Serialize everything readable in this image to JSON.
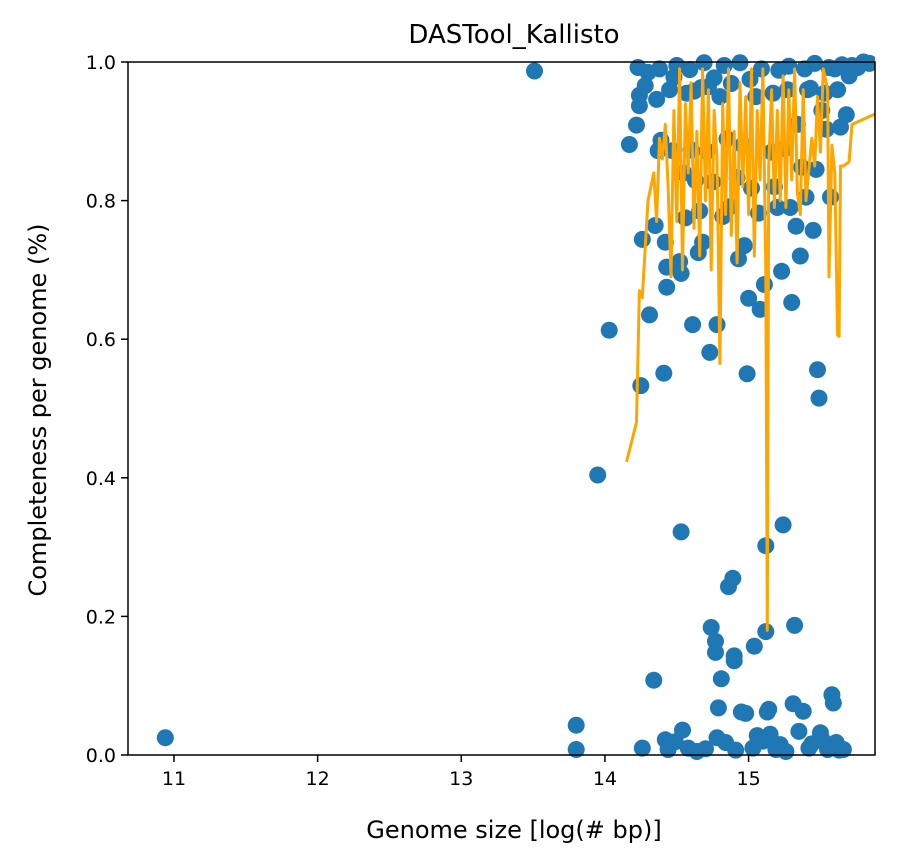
{
  "chart_data": {
    "type": "scatter",
    "title": "DASTool_Kallisto",
    "xlabel": "Genome size [log(# bp)]",
    "ylabel": "Completeness per genome (%)",
    "xlim": [
      10.68,
      15.88
    ],
    "ylim": [
      0.0,
      1.0
    ],
    "xticks": [
      11,
      12,
      13,
      14,
      15
    ],
    "yticks": [
      0.0,
      0.2,
      0.4,
      0.6,
      0.8,
      1.0
    ],
    "xtick_labels": [
      "11",
      "12",
      "13",
      "14",
      "15"
    ],
    "ytick_labels": [
      "0.0",
      "0.2",
      "0.4",
      "0.6",
      "0.8",
      "1.0"
    ],
    "grid": false,
    "series": [
      {
        "kind": "scatter",
        "color": "#1f77b4",
        "points": [
          [
            10.94,
            0.025
          ],
          [
            13.51,
            0.987
          ],
          [
            13.8,
            0.043
          ],
          [
            13.8,
            0.008
          ],
          [
            13.95,
            0.404
          ],
          [
            14.03,
            0.613
          ],
          [
            14.17,
            0.881
          ],
          [
            14.22,
            0.909
          ],
          [
            14.23,
            0.992
          ],
          [
            14.24,
            0.952
          ],
          [
            14.24,
            0.937
          ],
          [
            14.25,
            0.533
          ],
          [
            14.26,
            0.744
          ],
          [
            14.26,
            0.01
          ],
          [
            14.28,
            0.966
          ],
          [
            14.3,
            0.985
          ],
          [
            14.31,
            0.635
          ],
          [
            14.34,
            0.108
          ],
          [
            14.35,
            0.764
          ],
          [
            14.36,
            0.946
          ],
          [
            14.37,
            0.872
          ],
          [
            14.38,
            0.99
          ],
          [
            14.39,
            0.887
          ],
          [
            14.41,
            0.551
          ],
          [
            14.42,
            0.74
          ],
          [
            14.42,
            0.022
          ],
          [
            14.43,
            0.704
          ],
          [
            14.43,
            0.675
          ],
          [
            14.44,
            0.008
          ],
          [
            14.45,
            0.96
          ],
          [
            14.47,
            0.872
          ],
          [
            14.48,
            0.978
          ],
          [
            14.49,
            0.019
          ],
          [
            14.5,
            0.995
          ],
          [
            14.52,
            0.712
          ],
          [
            14.53,
            0.695
          ],
          [
            14.53,
            0.322
          ],
          [
            14.54,
            0.036
          ],
          [
            14.55,
            0.84
          ],
          [
            14.56,
            0.775
          ],
          [
            14.57,
            0.955
          ],
          [
            14.58,
            0.01
          ],
          [
            14.59,
            0.989
          ],
          [
            14.6,
            0.873
          ],
          [
            14.61,
            0.621
          ],
          [
            14.62,
            0.958
          ],
          [
            14.63,
            0.829
          ],
          [
            14.64,
            0.005
          ],
          [
            14.65,
            0.725
          ],
          [
            14.66,
            0.785
          ],
          [
            14.67,
            0.963
          ],
          [
            14.68,
            0.74
          ],
          [
            14.69,
            0.999
          ],
          [
            14.7,
            0.009
          ],
          [
            14.71,
            0.871
          ],
          [
            14.72,
            0.964
          ],
          [
            14.73,
            0.581
          ],
          [
            14.74,
            0.184
          ],
          [
            14.75,
            0.827
          ],
          [
            14.76,
            0.977
          ],
          [
            14.77,
            0.164
          ],
          [
            14.77,
            0.148
          ],
          [
            14.78,
            0.025
          ],
          [
            14.78,
            0.621
          ],
          [
            14.79,
            0.068
          ],
          [
            14.8,
            0.95
          ],
          [
            14.81,
            0.11
          ],
          [
            14.82,
            0.777
          ],
          [
            14.83,
            0.995
          ],
          [
            14.84,
            0.018
          ],
          [
            14.85,
            0.889
          ],
          [
            14.86,
            0.243
          ],
          [
            14.87,
            0.791
          ],
          [
            14.88,
            0.969
          ],
          [
            14.89,
            0.255
          ],
          [
            14.9,
            0.143
          ],
          [
            14.9,
            0.136
          ],
          [
            14.91,
            0.007
          ],
          [
            14.92,
            0.833
          ],
          [
            14.93,
            0.716
          ],
          [
            14.94,
            0.999
          ],
          [
            14.95,
            0.062
          ],
          [
            14.96,
            0.88
          ],
          [
            14.97,
            0.735
          ],
          [
            14.98,
            0.06
          ],
          [
            14.99,
            0.55
          ],
          [
            15.0,
            0.659
          ],
          [
            15.01,
            0.975
          ],
          [
            15.02,
            0.818
          ],
          [
            15.03,
            0.01
          ],
          [
            15.04,
            0.157
          ],
          [
            15.05,
            0.95
          ],
          [
            15.06,
            0.028
          ],
          [
            15.07,
            0.782
          ],
          [
            15.08,
            0.643
          ],
          [
            15.09,
            0.99
          ],
          [
            15.1,
            0.02
          ],
          [
            15.11,
            0.679
          ],
          [
            15.12,
            0.302
          ],
          [
            15.12,
            0.178
          ],
          [
            15.13,
            0.062
          ],
          [
            15.14,
            0.066
          ],
          [
            15.15,
            0.03
          ],
          [
            15.16,
            0.87
          ],
          [
            15.17,
            0.955
          ],
          [
            15.18,
            0.82
          ],
          [
            15.19,
            0.008
          ],
          [
            15.2,
            0.79
          ],
          [
            15.21,
            0.988
          ],
          [
            15.22,
            0.015
          ],
          [
            15.23,
            0.698
          ],
          [
            15.24,
            0.332
          ],
          [
            15.25,
            0.875
          ],
          [
            15.26,
            0.005
          ],
          [
            15.27,
            0.96
          ],
          [
            15.28,
            0.994
          ],
          [
            15.29,
            0.79
          ],
          [
            15.3,
            0.653
          ],
          [
            15.31,
            0.074
          ],
          [
            15.32,
            0.187
          ],
          [
            15.33,
            0.763
          ],
          [
            15.34,
            0.91
          ],
          [
            15.35,
            0.034
          ],
          [
            15.36,
            0.72
          ],
          [
            15.37,
            0.848
          ],
          [
            15.38,
            0.063
          ],
          [
            15.39,
            0.99
          ],
          [
            15.4,
            0.805
          ],
          [
            15.41,
            0.96
          ],
          [
            15.42,
            0.01
          ],
          [
            15.43,
            0.962
          ],
          [
            15.44,
            0.016
          ],
          [
            15.45,
            0.757
          ],
          [
            15.46,
            0.998
          ],
          [
            15.47,
            0.845
          ],
          [
            15.48,
            0.556
          ],
          [
            15.49,
            0.515
          ],
          [
            15.5,
            0.032
          ],
          [
            15.51,
            0.93
          ],
          [
            15.52,
            0.02
          ],
          [
            15.53,
            0.955
          ],
          [
            15.54,
            0.903
          ],
          [
            15.55,
            0.008
          ],
          [
            15.56,
            0.992
          ],
          [
            15.57,
            0.805
          ],
          [
            15.58,
            0.087
          ],
          [
            15.59,
            0.075
          ],
          [
            15.6,
            0.99
          ],
          [
            15.61,
            0.018
          ],
          [
            15.62,
            0.96
          ],
          [
            15.63,
            0.007
          ],
          [
            15.64,
            0.906
          ],
          [
            15.65,
            0.996
          ],
          [
            15.66,
            0.008
          ],
          [
            15.68,
            0.924
          ],
          [
            15.7,
            0.98
          ],
          [
            15.72,
            0.995
          ],
          [
            15.76,
            0.992
          ],
          [
            15.8,
            1.0
          ],
          [
            15.84,
            0.998
          ]
        ]
      },
      {
        "kind": "line",
        "color": "#ffa500",
        "points": [
          [
            14.15,
            0.423
          ],
          [
            14.22,
            0.48
          ],
          [
            14.24,
            0.67
          ],
          [
            14.26,
            0.66
          ],
          [
            14.3,
            0.8
          ],
          [
            14.34,
            0.84
          ],
          [
            14.36,
            0.77
          ],
          [
            14.38,
            0.89
          ],
          [
            14.4,
            0.86
          ],
          [
            14.42,
            0.91
          ],
          [
            14.44,
            0.82
          ],
          [
            14.46,
            0.69
          ],
          [
            14.48,
            0.93
          ],
          [
            14.5,
            0.77
          ],
          [
            14.52,
            0.99
          ],
          [
            14.54,
            0.7
          ],
          [
            14.56,
            0.94
          ],
          [
            14.58,
            0.84
          ],
          [
            14.6,
            0.97
          ],
          [
            14.62,
            0.76
          ],
          [
            14.64,
            0.9
          ],
          [
            14.66,
            0.72
          ],
          [
            14.68,
            0.99
          ],
          [
            14.7,
            0.8
          ],
          [
            14.72,
            0.96
          ],
          [
            14.74,
            0.7
          ],
          [
            14.76,
            0.93
          ],
          [
            14.78,
            0.86
          ],
          [
            14.8,
            0.565
          ],
          [
            14.82,
            0.94
          ],
          [
            14.84,
            0.78
          ],
          [
            14.86,
            0.99
          ],
          [
            14.88,
            0.75
          ],
          [
            14.9,
            0.9
          ],
          [
            14.92,
            0.71
          ],
          [
            14.94,
            0.97
          ],
          [
            14.96,
            0.82
          ],
          [
            14.98,
            0.95
          ],
          [
            15.0,
            0.78
          ],
          [
            15.02,
            0.99
          ],
          [
            15.04,
            0.72
          ],
          [
            15.06,
            0.93
          ],
          [
            15.08,
            0.83
          ],
          [
            15.1,
            0.99
          ],
          [
            15.12,
            0.7
          ],
          [
            15.13,
            0.18
          ],
          [
            15.14,
            0.85
          ],
          [
            15.16,
            0.96
          ],
          [
            15.18,
            0.79
          ],
          [
            15.2,
            0.93
          ],
          [
            15.22,
            0.8
          ],
          [
            15.24,
            0.98
          ],
          [
            15.26,
            0.79
          ],
          [
            15.28,
            0.96
          ],
          [
            15.3,
            0.83
          ],
          [
            15.32,
            0.99
          ],
          [
            15.34,
            0.81
          ],
          [
            15.36,
            0.78
          ],
          [
            15.38,
            0.96
          ],
          [
            15.4,
            0.8
          ],
          [
            15.44,
            0.89
          ],
          [
            15.46,
            0.85
          ],
          [
            15.48,
            0.95
          ],
          [
            15.5,
            0.87
          ],
          [
            15.52,
            0.99
          ],
          [
            15.55,
            0.96
          ],
          [
            15.56,
            0.69
          ],
          [
            15.58,
            0.88
          ],
          [
            15.6,
            0.84
          ],
          [
            15.62,
            0.606
          ],
          [
            15.63,
            0.604
          ],
          [
            15.64,
            0.85
          ],
          [
            15.66,
            0.85
          ],
          [
            15.7,
            0.856
          ],
          [
            15.72,
            0.91
          ],
          [
            15.88,
            0.925
          ]
        ]
      }
    ]
  }
}
